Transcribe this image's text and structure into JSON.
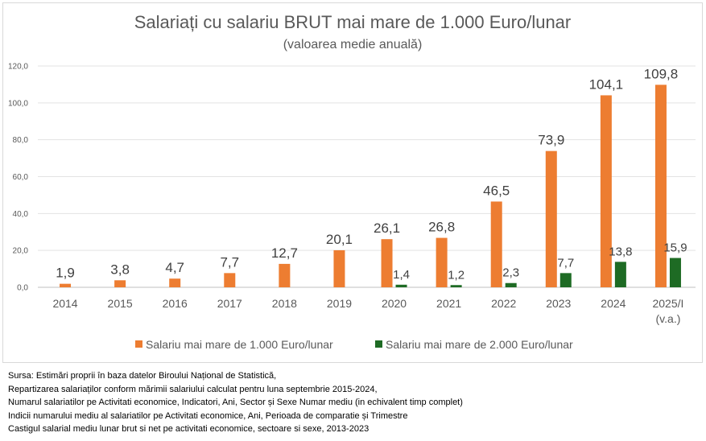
{
  "chart_data": {
    "type": "bar",
    "title": "Salariați cu salariu BRUT mai mare de 1.000 Euro/lunar",
    "subtitle": "(valoarea medie anuală)",
    "categories": [
      "2014",
      "2015",
      "2016",
      "2017",
      "2018",
      "2019",
      "2020",
      "2021",
      "2022",
      "2023",
      "2024",
      "2025/I"
    ],
    "category_sublabels": [
      "",
      "",
      "",
      "",
      "",
      "",
      "",
      "",
      "",
      "",
      "",
      "(v.a.)"
    ],
    "series": [
      {
        "name": "Salariu mai mare de 1.000 Euro/lunar",
        "color": "#ed7d31",
        "values": [
          1.9,
          3.8,
          4.7,
          7.7,
          12.7,
          20.1,
          26.1,
          26.8,
          46.5,
          73.9,
          104.1,
          109.8
        ],
        "labels": [
          "1,9",
          "3,8",
          "4,7",
          "7,7",
          "12,7",
          "20,1",
          "26,1",
          "26,8",
          "46,5",
          "73,9",
          "104,1",
          "109,8"
        ]
      },
      {
        "name": "Salariu mai mare de 2.000 Euro/lunar",
        "color": "#1e6b24",
        "values": [
          null,
          null,
          null,
          null,
          null,
          null,
          1.4,
          1.2,
          2.3,
          7.7,
          13.8,
          15.9
        ],
        "labels": [
          "",
          "",
          "",
          "",
          "",
          "",
          "1,4",
          "1,2",
          "2,3",
          "7,7",
          "13,8",
          "15,9"
        ]
      }
    ],
    "ylim": [
      0,
      120
    ],
    "yticks": [
      0,
      20,
      40,
      60,
      80,
      100,
      120
    ],
    "ytick_labels": [
      "0,0",
      "20,0",
      "40,0",
      "60,0",
      "80,0",
      "100,0",
      "120,0"
    ],
    "grid": true,
    "legend_position": "bottom"
  },
  "source": {
    "lines": [
      "Sursa: Estimări proprii în baza datelor Biroului Național de Statistică,",
      "Repartizarea salariaților conform mărimii salariului calculat pentru luna septembrie 2015-2024,",
      "Numarul salariatilor pe Activitati economice, Indicatori, Ani, Sector și Sexe Numar mediu (in echivalent timp complet)",
      "Indicii numarului mediu al salariatilor pe Activitati economice, Ani, Perioada de comparatie și Trimestre",
      "Castigul salarial mediu lunar brut si net pe activitati economice, sectoare si sexe, 2013-2023"
    ]
  }
}
